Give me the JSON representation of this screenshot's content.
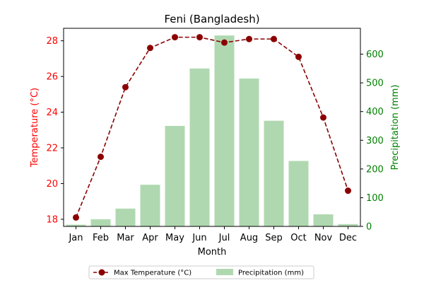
{
  "chart_data": {
    "type": "bar+line",
    "title": "Feni (Bangladesh)",
    "xlabel": "Month",
    "ylabel_left": "Temperature (°C)",
    "ylabel_right": "Precipitation (mm)",
    "categories": [
      "Jan",
      "Feb",
      "Mar",
      "Apr",
      "May",
      "Jun",
      "Jul",
      "Aug",
      "Sep",
      "Oct",
      "Nov",
      "Dec"
    ],
    "series": [
      {
        "name": "Max Temperature (°C)",
        "type": "line",
        "axis": "left",
        "color": "#8b0000",
        "values": [
          18.1,
          21.5,
          25.4,
          27.6,
          28.2,
          28.2,
          27.9,
          28.1,
          28.1,
          27.1,
          23.7,
          19.6
        ]
      },
      {
        "name": "Precipitation (mm)",
        "type": "bar",
        "axis": "right",
        "color": "#b0d8b0",
        "values": [
          6,
          25,
          62,
          145,
          350,
          550,
          665,
          515,
          368,
          228,
          42,
          8
        ]
      }
    ],
    "ylim_left": [
      17.6,
      28.7
    ],
    "ylim_right": [
      0,
      690
    ],
    "yticks_left": [
      18,
      20,
      22,
      24,
      26,
      28
    ],
    "yticks_right": [
      0,
      100,
      200,
      300,
      400,
      500,
      600
    ],
    "left_axis_color": "#ff0000",
    "right_axis_color": "#008000",
    "grid": false,
    "legend_position": "bottom-center"
  }
}
